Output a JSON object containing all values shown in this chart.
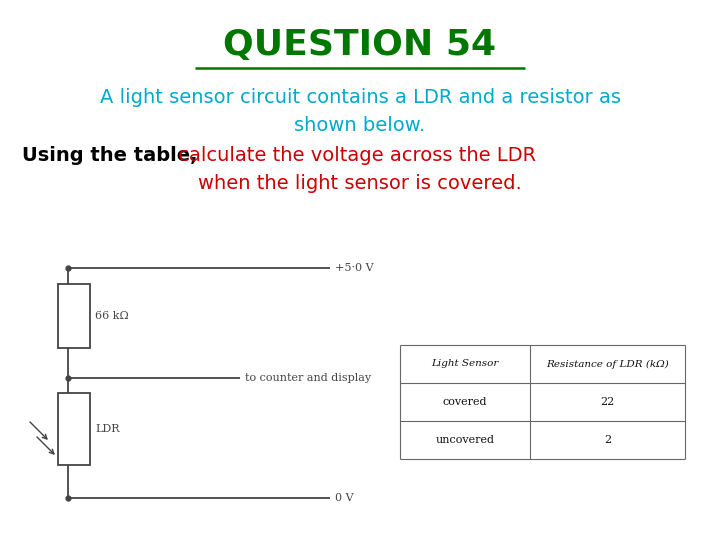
{
  "title": "QUESTION 54",
  "title_color": "#007700",
  "title_fontsize": 26,
  "line1_cyan": "A light sensor circuit contains a LDR and a resistor as",
  "line2_cyan": "shown below.",
  "line3a_black": "Using the table,",
  "line3b_red": " calculate the voltage across the LDR",
  "line4_red": "when the light sensor is covered.",
  "cyan_color": "#00AACC",
  "red_color": "#CC0000",
  "black_color": "#000000",
  "green_color": "#007700",
  "bg_color": "#FFFFFF",
  "circuit_voltage_top": "+5·0 V",
  "circuit_voltage_bot": "0 V",
  "resistor_label": "66 kΩ",
  "ldr_label": "LDR",
  "output_label": "to counter and display",
  "table_col1_header": "Light Sensor",
  "table_col2_header": "Resistance of LDR (kΩ)",
  "table_rows": [
    [
      "covered",
      "22"
    ],
    [
      "uncovered",
      "2"
    ]
  ]
}
